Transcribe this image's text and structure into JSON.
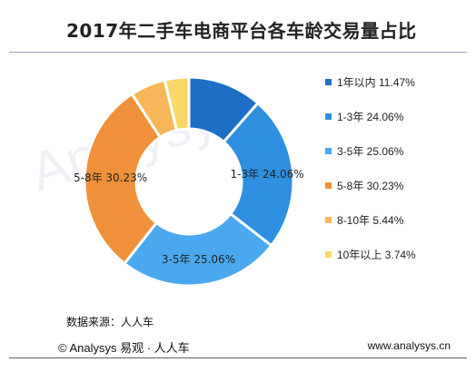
{
  "title": "2017年二手车电商平台各车龄交易量占比",
  "source": "数据来源：人人车",
  "footer": {
    "left": "© Analysys  易观 · 人人车",
    "right": "www.analysys.cn"
  },
  "watermark": "Analysys",
  "chart_data": {
    "type": "pie",
    "title": "2017年二手车电商平台各车龄交易量占比",
    "unit": "%",
    "categories": [
      "1年以内",
      "1-3年",
      "3-5年",
      "5-8年",
      "8-10年",
      "10年以上"
    ],
    "values": [
      11.47,
      24.06,
      25.06,
      30.23,
      5.44,
      3.74
    ],
    "colors": [
      "#1f6fc6",
      "#2e8fe0",
      "#4aa8ee",
      "#f0903a",
      "#f7b758",
      "#f9d76a"
    ],
    "legend_labels": [
      "1年以内 11.47%",
      "1-3年 24.06%",
      "3-5年 25.06%",
      "5-8年 30.23%",
      "8-10年 5.44%",
      "10年以上 3.74%"
    ],
    "data_labels": [
      "",
      "1-3年 24.06%",
      "3-5年 25.06%",
      "5-8年 30.23%",
      "",
      ""
    ],
    "legend_position": "right",
    "donut": true
  }
}
